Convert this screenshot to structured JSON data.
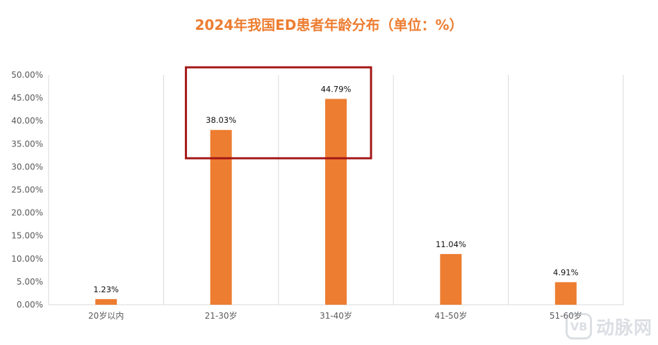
{
  "chart_data": {
    "type": "bar",
    "title": "2024年我国ED患者年龄分布（单位：%）",
    "categories": [
      "20岁以内",
      "21-30岁",
      "31-40岁",
      "41-50岁",
      "51-60岁"
    ],
    "values": [
      1.23,
      38.03,
      44.79,
      11.04,
      4.91
    ],
    "value_labels": [
      "1.23%",
      "38.03%",
      "44.79%",
      "11.04%",
      "4.91%"
    ],
    "y_ticks": [
      "0.00%",
      "5.00%",
      "10.00%",
      "15.00%",
      "20.00%",
      "25.00%",
      "30.00%",
      "35.00%",
      "40.00%",
      "45.00%",
      "50.00%"
    ],
    "ylim": [
      0,
      50
    ],
    "grid": "vertical category separators",
    "bar_color": "#ED7D31",
    "highlight_box_color": "#A31515",
    "highlight_categories": [
      "21-30岁",
      "31-40岁"
    ]
  },
  "watermark": {
    "logo_text": "VB",
    "text": "动脉网"
  }
}
